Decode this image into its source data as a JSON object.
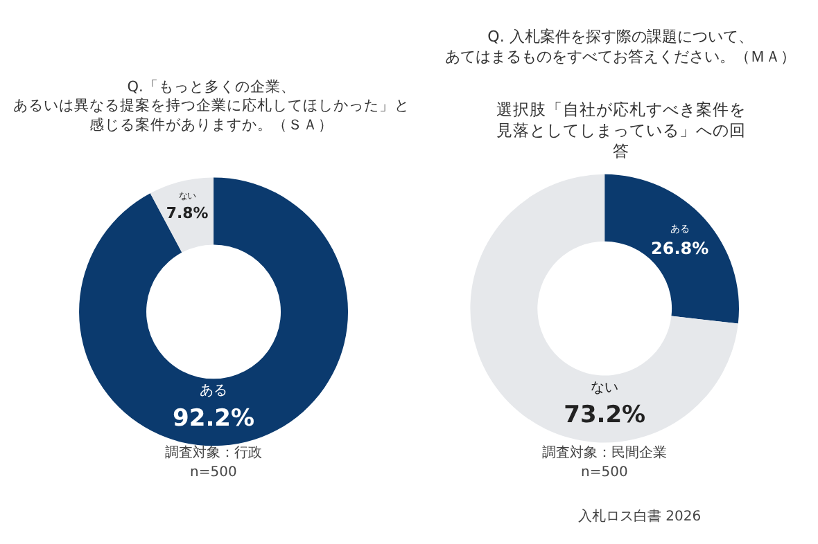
{
  "chart_data": [
    {
      "type": "donut",
      "title": "Q.「もっと多くの企業、あるいは異なる提案を持つ企業に応札してほしかった」と感じる案件がありますか。（ＳＡ）",
      "categories": [
        "ある",
        "ない"
      ],
      "values": [
        92.2,
        7.8
      ],
      "value_labels": [
        "92.2%",
        "7.8%"
      ],
      "colors": [
        "#0b3a6e",
        "#e6e8eb"
      ],
      "legend": false,
      "annotations": [
        "調査対象：行政",
        "n=500"
      ]
    },
    {
      "type": "donut",
      "title": "Q. 入札案件を探す際の課題について、あてはまるものをすべてお答えください。（ＭＡ）",
      "subtitle": "選択肢「自社が応札すべき案件を見落としてしまっている」への回答",
      "categories": [
        "ある",
        "ない"
      ],
      "values": [
        26.8,
        73.2
      ],
      "value_labels": [
        "26.8%",
        "73.2%"
      ],
      "colors": [
        "#0b3a6e",
        "#e6e8eb"
      ],
      "legend": false,
      "annotations": [
        "調査対象：民間企業",
        "n=500",
        "入札ロス白書 2026"
      ]
    }
  ]
}
